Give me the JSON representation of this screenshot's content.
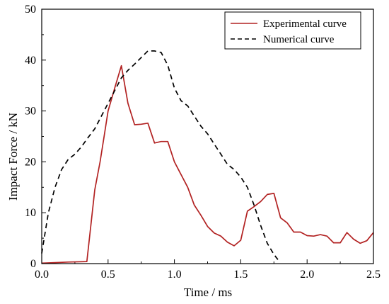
{
  "chart_data": {
    "type": "line",
    "title": "",
    "xlabel": "Time / ms",
    "ylabel": "Impact Force / kN",
    "xlim": [
      0,
      2.5
    ],
    "ylim": [
      0,
      50
    ],
    "x_ticks": [
      0.0,
      0.5,
      1.0,
      1.5,
      2.0,
      2.5
    ],
    "x_tick_labels": [
      "0.0",
      "0.5",
      "1.0",
      "1.5",
      "2.0",
      "2.5"
    ],
    "y_ticks": [
      0,
      10,
      20,
      30,
      40,
      50
    ],
    "y_tick_labels": [
      "0",
      "10",
      "20",
      "30",
      "40",
      "50"
    ],
    "grid": false,
    "legend_position": "top-right",
    "series": [
      {
        "name": "Experimental curve",
        "color": "#b22222",
        "style": "solid",
        "points": [
          [
            0.0,
            0.1
          ],
          [
            0.1,
            0.2
          ],
          [
            0.2,
            0.3
          ],
          [
            0.34,
            0.4
          ],
          [
            0.4,
            14.5
          ],
          [
            0.44,
            20.0
          ],
          [
            0.47,
            25.0
          ],
          [
            0.5,
            30.0
          ],
          [
            0.55,
            34.5
          ],
          [
            0.6,
            38.9
          ],
          [
            0.65,
            31.5
          ],
          [
            0.7,
            27.3
          ],
          [
            0.75,
            27.4
          ],
          [
            0.8,
            27.6
          ],
          [
            0.85,
            23.7
          ],
          [
            0.9,
            24.0
          ],
          [
            0.95,
            24.0
          ],
          [
            1.0,
            20.0
          ],
          [
            1.05,
            17.5
          ],
          [
            1.1,
            15.0
          ],
          [
            1.15,
            11.5
          ],
          [
            1.2,
            9.5
          ],
          [
            1.25,
            7.3
          ],
          [
            1.3,
            6.0
          ],
          [
            1.35,
            5.4
          ],
          [
            1.4,
            4.2
          ],
          [
            1.45,
            3.5
          ],
          [
            1.5,
            4.6
          ],
          [
            1.55,
            10.3
          ],
          [
            1.6,
            11.2
          ],
          [
            1.65,
            12.2
          ],
          [
            1.7,
            13.6
          ],
          [
            1.75,
            13.8
          ],
          [
            1.8,
            9.0
          ],
          [
            1.85,
            8.0
          ],
          [
            1.9,
            6.2
          ],
          [
            1.95,
            6.2
          ],
          [
            2.0,
            5.5
          ],
          [
            2.05,
            5.4
          ],
          [
            2.1,
            5.7
          ],
          [
            2.15,
            5.4
          ],
          [
            2.2,
            4.1
          ],
          [
            2.25,
            4.1
          ],
          [
            2.3,
            6.1
          ],
          [
            2.35,
            4.8
          ],
          [
            2.4,
            4.0
          ],
          [
            2.45,
            4.5
          ],
          [
            2.5,
            6.1
          ]
        ]
      },
      {
        "name": "Numerical curve",
        "color": "#000000",
        "style": "dashed",
        "points": [
          [
            0.0,
            2.0
          ],
          [
            0.05,
            10.0
          ],
          [
            0.1,
            15.0
          ],
          [
            0.15,
            18.5
          ],
          [
            0.2,
            20.5
          ],
          [
            0.25,
            21.5
          ],
          [
            0.3,
            23.0
          ],
          [
            0.35,
            24.8
          ],
          [
            0.4,
            26.5
          ],
          [
            0.45,
            29.0
          ],
          [
            0.5,
            31.5
          ],
          [
            0.55,
            34.0
          ],
          [
            0.6,
            36.5
          ],
          [
            0.65,
            38.0
          ],
          [
            0.7,
            39.2
          ],
          [
            0.75,
            40.5
          ],
          [
            0.8,
            41.8
          ],
          [
            0.85,
            41.8
          ],
          [
            0.9,
            41.5
          ],
          [
            0.95,
            39.0
          ],
          [
            1.0,
            34.5
          ],
          [
            1.05,
            32.0
          ],
          [
            1.1,
            31.0
          ],
          [
            1.15,
            29.0
          ],
          [
            1.2,
            27.0
          ],
          [
            1.25,
            25.5
          ],
          [
            1.3,
            23.5
          ],
          [
            1.35,
            21.5
          ],
          [
            1.4,
            19.5
          ],
          [
            1.45,
            18.5
          ],
          [
            1.5,
            17.0
          ],
          [
            1.55,
            15.0
          ],
          [
            1.6,
            11.5
          ],
          [
            1.65,
            7.5
          ],
          [
            1.7,
            4.0
          ],
          [
            1.75,
            1.8
          ],
          [
            1.78,
            0.8
          ]
        ]
      }
    ]
  }
}
